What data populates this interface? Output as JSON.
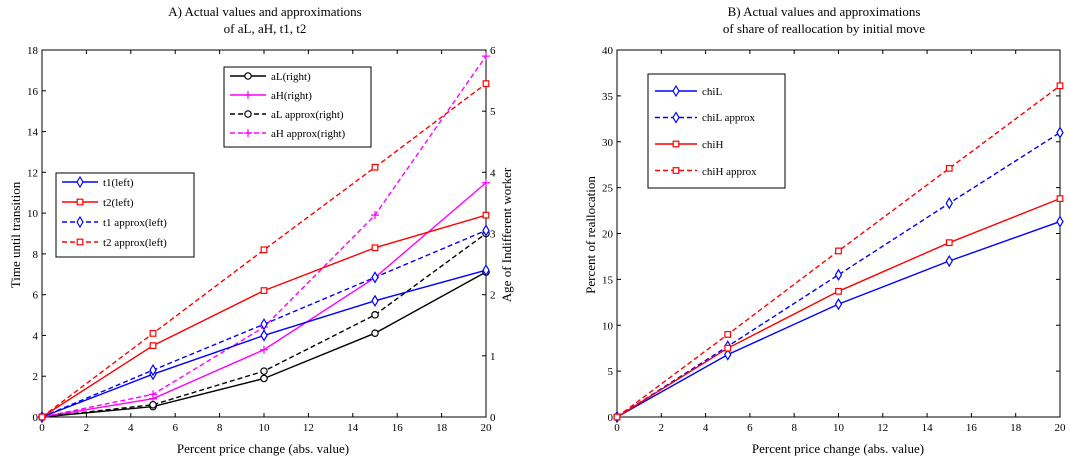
{
  "chart_data": [
    {
      "type": "line",
      "title_line1": "A) Actual values and approximations",
      "title_line2": "of aL, aH, t1, t2",
      "xlabel": "Percent price change (abs. value)",
      "ylabel": "Time until transition",
      "ylabel_right": "Age of Indifferent worker",
      "xlim": [
        0,
        20
      ],
      "ylim": [
        0,
        18
      ],
      "ylim_right": [
        0,
        6
      ],
      "x_ticks": [
        "0",
        "2",
        "4",
        "6",
        "8",
        "10",
        "12",
        "14",
        "16",
        "18",
        "20"
      ],
      "y_ticks": [
        "0",
        "2",
        "4",
        "6",
        "8",
        "10",
        "12",
        "14",
        "16",
        "18"
      ],
      "y_ticks_right": [
        "0",
        "1",
        "2",
        "3",
        "4",
        "5",
        "6"
      ],
      "x": [
        0,
        5,
        10,
        15,
        20
      ],
      "series": [
        {
          "name": "aL(right)",
          "axis": "right",
          "values": [
            0,
            0.17,
            0.63,
            1.37,
            2.37
          ],
          "color": "#000000",
          "dash": false,
          "marker": "circle"
        },
        {
          "name": "aH(right)",
          "axis": "right",
          "values": [
            0,
            0.3,
            1.1,
            2.28,
            3.83
          ],
          "color": "#ff00ff",
          "dash": false,
          "marker": "plus"
        },
        {
          "name": "aL approx(right)",
          "axis": "right",
          "values": [
            0,
            0.2,
            0.75,
            1.67,
            3.0
          ],
          "color": "#000000",
          "dash": true,
          "marker": "circle"
        },
        {
          "name": "aH approx(right)",
          "axis": "right",
          "values": [
            0,
            0.37,
            1.47,
            3.3,
            5.9
          ],
          "color": "#ff00ff",
          "dash": true,
          "marker": "plus"
        },
        {
          "name": "t1(left)",
          "axis": "left",
          "values": [
            0,
            2.1,
            4.0,
            5.7,
            7.2
          ],
          "color": "#0000ff",
          "dash": false,
          "marker": "diamond"
        },
        {
          "name": "t2(left)",
          "axis": "left",
          "values": [
            0,
            3.5,
            6.2,
            8.3,
            9.9
          ],
          "color": "#ff0000",
          "dash": false,
          "marker": "square"
        },
        {
          "name": "t1 approx(left)",
          "axis": "left",
          "values": [
            0,
            2.3,
            4.55,
            6.85,
            9.15
          ],
          "color": "#0000ff",
          "dash": true,
          "marker": "diamond"
        },
        {
          "name": "t2 approx(left)",
          "axis": "left",
          "values": [
            0,
            4.1,
            8.2,
            12.25,
            16.35
          ],
          "color": "#ff0000",
          "dash": true,
          "marker": "square"
        }
      ],
      "legends": [
        {
          "placement": "top-right",
          "entries": [
            "aL(right)",
            "aH(right)",
            "aL approx(right)",
            "aH approx(right)"
          ]
        },
        {
          "placement": "left-middle",
          "entries": [
            "t1(left)",
            "t2(left)",
            "t1 approx(left)",
            "t2 approx(left)"
          ]
        }
      ],
      "grid": false
    },
    {
      "type": "line",
      "title_line1": "B) Actual values and approximations",
      "title_line2": "of share of reallocation by initial move",
      "xlabel": "Percent price change (abs. value)",
      "ylabel": "Percent of reallocation",
      "xlim": [
        0,
        20
      ],
      "ylim": [
        0,
        40
      ],
      "x_ticks": [
        "0",
        "2",
        "4",
        "6",
        "8",
        "10",
        "12",
        "14",
        "16",
        "18",
        "20"
      ],
      "y_ticks": [
        "0",
        "5",
        "10",
        "15",
        "20",
        "25",
        "30",
        "35",
        "40"
      ],
      "x": [
        0,
        5,
        10,
        15,
        20
      ],
      "series": [
        {
          "name": "chiL",
          "axis": "left",
          "values": [
            0,
            6.8,
            12.3,
            17.0,
            21.3
          ],
          "color": "#0000ff",
          "dash": false,
          "marker": "diamond"
        },
        {
          "name": "chiL approx",
          "axis": "left",
          "values": [
            0,
            7.7,
            15.5,
            23.3,
            31.0
          ],
          "color": "#0000ff",
          "dash": true,
          "marker": "diamond"
        },
        {
          "name": "chiH",
          "axis": "left",
          "values": [
            0,
            7.5,
            13.7,
            19.0,
            23.8
          ],
          "color": "#ff0000",
          "dash": false,
          "marker": "square"
        },
        {
          "name": "chiH approx",
          "axis": "left",
          "values": [
            0,
            9.0,
            18.1,
            27.1,
            36.1
          ],
          "color": "#ff0000",
          "dash": true,
          "marker": "square"
        }
      ],
      "legends": [
        {
          "placement": "top-left",
          "entries": [
            "chiL",
            "chiL approx",
            "chiH",
            "chiH approx"
          ]
        }
      ],
      "grid": false
    }
  ]
}
